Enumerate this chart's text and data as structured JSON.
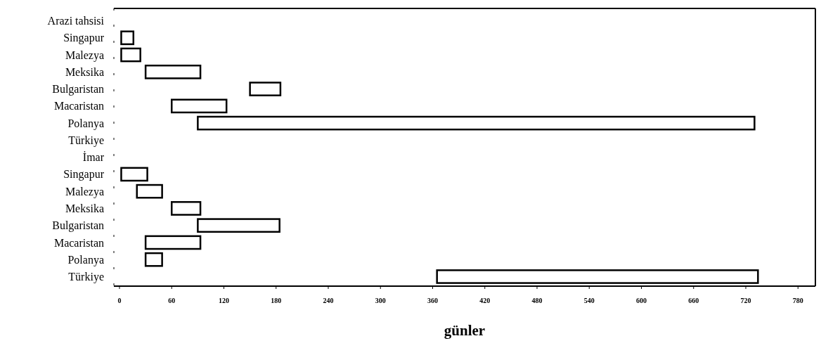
{
  "chart_data": {
    "type": "bar",
    "orientation": "horizontal",
    "xlabel": "günler",
    "categories": [
      "Arazi tahsisi",
      "Singapur",
      "Malezya",
      "Meksika",
      "Bulgaristan",
      "Macaristan",
      "Polanya",
      "Türkiye",
      "İmar",
      "Singapur",
      "Malezya",
      "Meksika",
      "Bulgaristan",
      "Macaristan",
      "Polanya",
      "Türkiye"
    ],
    "base": [
      null,
      2,
      2,
      30,
      150,
      60,
      90,
      null,
      null,
      2,
      20,
      60,
      90,
      30,
      30,
      365
    ],
    "values": [
      null,
      14,
      22,
      63,
      35,
      63,
      640,
      null,
      null,
      30,
      29,
      33,
      94,
      63,
      19,
      369
    ],
    "color": "#ffffff",
    "xlim": [
      0,
      800
    ],
    "xticks": [
      0,
      60,
      120,
      180,
      240,
      300,
      360,
      420,
      480,
      540,
      600,
      660,
      720,
      780
    ],
    "grid": false
  }
}
